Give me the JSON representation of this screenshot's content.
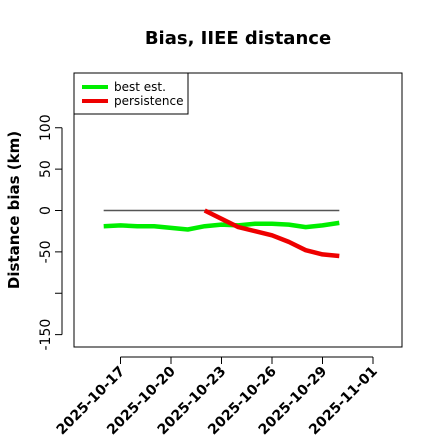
{
  "chart_data": {
    "type": "line",
    "title": "Bias, IIEE distance",
    "xlabel": "",
    "ylabel": "Distance bias (km)",
    "xlim": [
      "2025-10-15",
      "2025-11-01"
    ],
    "ylim": [
      -160,
      160
    ],
    "y_ticks": [
      {
        "value": 100,
        "label": "100"
      },
      {
        "value": 50,
        "label": "50"
      },
      {
        "value": 0,
        "label": "0"
      },
      {
        "value": -50,
        "label": "-50"
      },
      {
        "value": -100,
        "label": ""
      },
      {
        "value": -150,
        "label": "-150"
      }
    ],
    "x_ticks": [
      "2025-10-17",
      "2025-10-20",
      "2025-10-23",
      "2025-10-26",
      "2025-10-29",
      "2025-11-01"
    ],
    "reference_line": {
      "value": 0,
      "from": "2025-10-16",
      "to": "2025-10-30",
      "color": "#555555"
    },
    "legend_position": "top-left",
    "grid": false,
    "series": [
      {
        "name": "best est.",
        "color": "#00ee00",
        "points": [
          [
            "2025-10-16",
            -19
          ],
          [
            "2025-10-17",
            -18
          ],
          [
            "2025-10-18",
            -19
          ],
          [
            "2025-10-19",
            -19
          ],
          [
            "2025-10-20",
            -21
          ],
          [
            "2025-10-21",
            -23
          ],
          [
            "2025-10-22",
            -19
          ],
          [
            "2025-10-23",
            -17
          ],
          [
            "2025-10-24",
            -18
          ],
          [
            "2025-10-25",
            -16
          ],
          [
            "2025-10-26",
            -16
          ],
          [
            "2025-10-27",
            -17
          ],
          [
            "2025-10-28",
            -20
          ],
          [
            "2025-10-29",
            -18
          ],
          [
            "2025-10-30",
            -15
          ]
        ]
      },
      {
        "name": "persistence",
        "color": "#ee0000",
        "points": [
          [
            "2025-10-22",
            0
          ],
          [
            "2025-10-23",
            -10
          ],
          [
            "2025-10-24",
            -20
          ],
          [
            "2025-10-25",
            -25
          ],
          [
            "2025-10-26",
            -30
          ],
          [
            "2025-10-27",
            -38
          ],
          [
            "2025-10-28",
            -48
          ],
          [
            "2025-10-29",
            -53
          ],
          [
            "2025-10-30",
            -55
          ]
        ]
      }
    ]
  }
}
